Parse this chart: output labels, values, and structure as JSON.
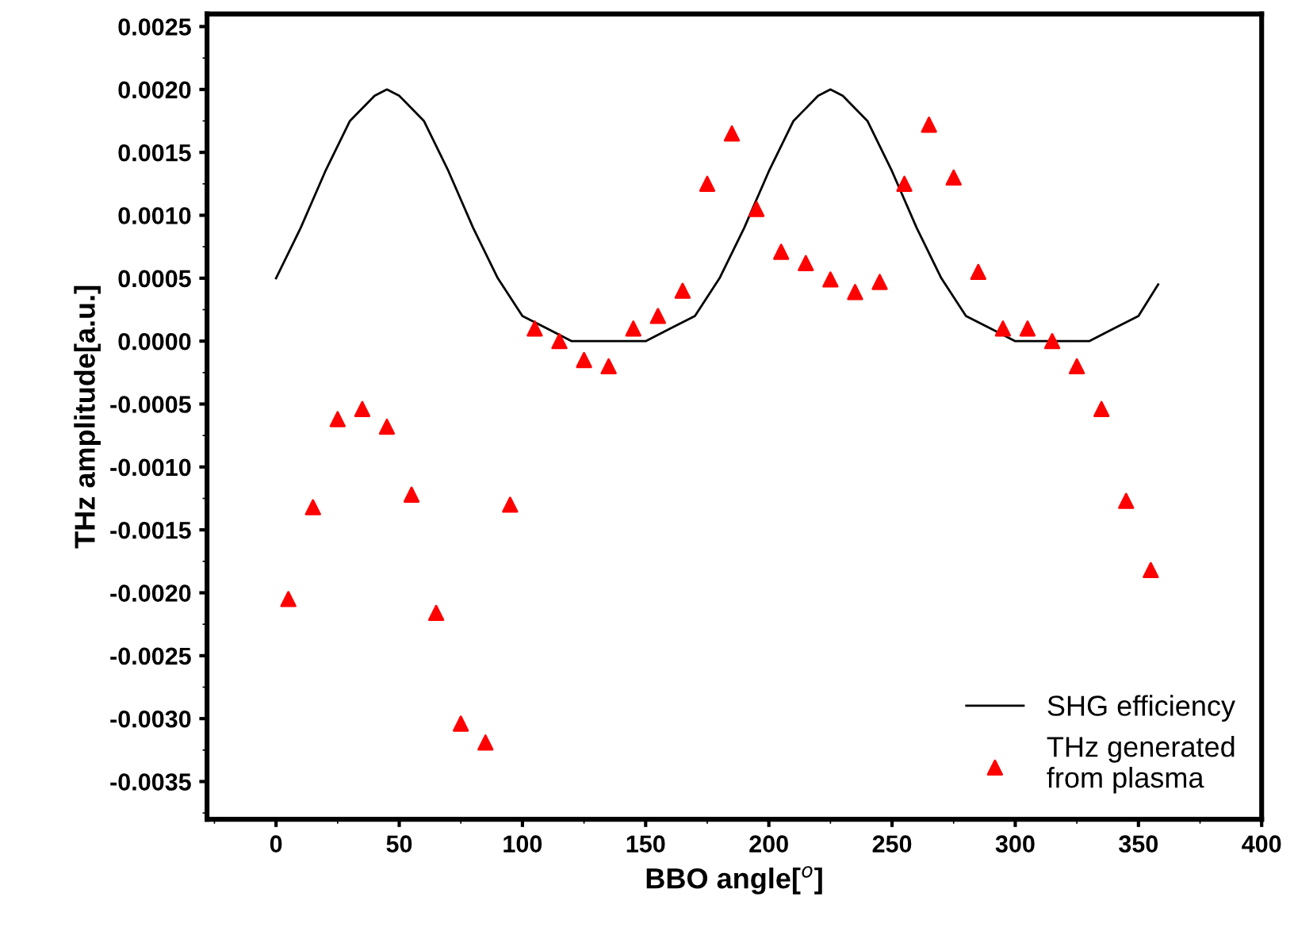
{
  "chart_data": {
    "type": "scatter",
    "xlabel": "BBO angle[$^{o}$]",
    "ylabel": "THz amplitude[a.u.]",
    "series": [
      {
        "name": "SHG efficiency",
        "type": "line",
        "color": "#000000",
        "marker": "none",
        "line_style": "solid",
        "x": [
          0,
          10,
          20,
          30,
          40,
          45,
          50,
          60,
          70,
          80,
          90,
          100,
          110,
          120,
          130,
          135,
          140,
          150,
          160,
          170,
          180,
          190,
          200,
          210,
          220,
          225,
          230,
          240,
          250,
          260,
          270,
          280,
          290,
          300,
          310,
          315,
          320,
          330,
          340,
          350,
          358
        ],
        "values": [
          0.0005,
          0.0009,
          0.00135,
          0.00175,
          0.00195,
          0.002,
          0.00195,
          0.00175,
          0.00135,
          0.0009,
          0.0005,
          0.0002,
          0.0001,
          0.0,
          0.0,
          0.0,
          0.0,
          0.0,
          0.0001,
          0.0002,
          0.0005,
          0.0009,
          0.00135,
          0.00175,
          0.00195,
          0.002,
          0.00195,
          0.00175,
          0.00135,
          0.0009,
          0.0005,
          0.0002,
          0.0001,
          0.0,
          0.0,
          0.0,
          0.0,
          0.0,
          0.0001,
          0.0002,
          0.00045
        ]
      },
      {
        "name": "THz generated\nfrom plasma",
        "color": "#ff0000",
        "marker": "triangle",
        "x": [
          5,
          15,
          25,
          35,
          45,
          55,
          65,
          75,
          85,
          95,
          105,
          115,
          125,
          135,
          145,
          155,
          165,
          175,
          185,
          195,
          205,
          215,
          225,
          235,
          245,
          255,
          265,
          275,
          285,
          295,
          305,
          315,
          325,
          335,
          345,
          355
        ],
        "values": [
          -0.00205,
          -0.00132,
          -0.00062,
          -0.00054,
          -0.00068,
          -0.00122,
          -0.00216,
          -0.00304,
          -0.00319,
          -0.0013,
          0.0001,
          0.0,
          -0.00015,
          -0.0002,
          0.0001,
          0.0002,
          0.0004,
          0.00125,
          0.00165,
          0.00105,
          0.00071,
          0.00062,
          0.00049,
          0.00039,
          0.00047,
          0.00125,
          0.00172,
          0.0013,
          0.00055,
          0.0001,
          0.0001,
          0.0,
          -0.0002,
          -0.00054,
          -0.00127,
          -0.00182
        ]
      }
    ],
    "xlim": [
      -28,
      400
    ],
    "xticks": [
      0,
      50,
      100,
      150,
      200,
      250,
      300,
      350,
      400
    ],
    "ylim": [
      -0.0038,
      0.0026
    ],
    "yticks": [
      {
        "value": -0.0035,
        "label": "-0.0035"
      },
      {
        "value": -0.003,
        "label": "-0.0030"
      },
      {
        "value": -0.0025,
        "label": "-0.0025"
      },
      {
        "value": -0.002,
        "label": "-0.0020"
      },
      {
        "value": -0.0015,
        "label": "-0.0015"
      },
      {
        "value": -0.001,
        "label": "-0.0010"
      },
      {
        "value": -0.0005,
        "label": "-0.0005"
      },
      {
        "value": 0.0,
        "label": "0.0000"
      },
      {
        "value": 0.0005,
        "label": "0.0005"
      },
      {
        "value": 0.001,
        "label": "0.0010"
      },
      {
        "value": 0.0015,
        "label": "0.0015"
      },
      {
        "value": 0.002,
        "label": "0.0020"
      },
      {
        "value": 0.0025,
        "label": "0.0025"
      }
    ],
    "grid": false,
    "legend": "bottom right"
  }
}
